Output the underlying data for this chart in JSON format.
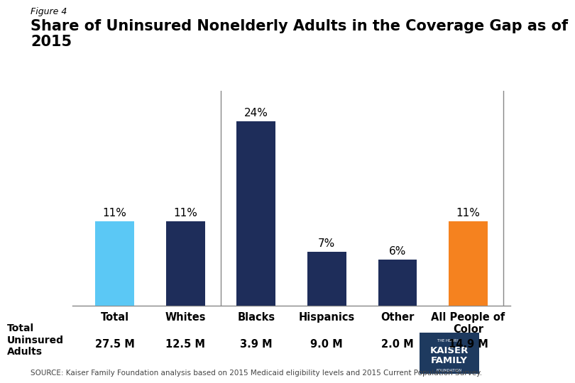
{
  "figure_label": "Figure 4",
  "title": "Share of Uninsured Nonelderly Adults in the Coverage Gap as of\n2015",
  "categories": [
    "Total",
    "Whites",
    "Blacks",
    "Hispanics",
    "Other",
    "All People of\nColor"
  ],
  "values": [
    11,
    11,
    24,
    7,
    6,
    11
  ],
  "bar_colors": [
    "#5bc8f5",
    "#1e2d5a",
    "#1e2d5a",
    "#1e2d5a",
    "#1e2d5a",
    "#f5821f"
  ],
  "bar_labels": [
    "11%",
    "11%",
    "24%",
    "7%",
    "6%",
    "11%"
  ],
  "sub_labels": [
    "27.5 M",
    "12.5 M",
    "3.9 M",
    "9.0 M",
    "2.0 M",
    "14.9 M"
  ],
  "vline_positions": [
    1.5,
    5.5
  ],
  "source_text": "SOURCE: Kaiser Family Foundation analysis based on 2015 Medicaid eligibility levels and 2015 Current Population Survey.",
  "background_color": "#ffffff",
  "ylim": [
    0,
    28
  ],
  "bar_width": 0.55,
  "logo_lines": [
    "THE HENRY J.",
    "KAISER",
    "FAMILY",
    "FOUNDATION"
  ],
  "logo_color": "#1e3a5f"
}
